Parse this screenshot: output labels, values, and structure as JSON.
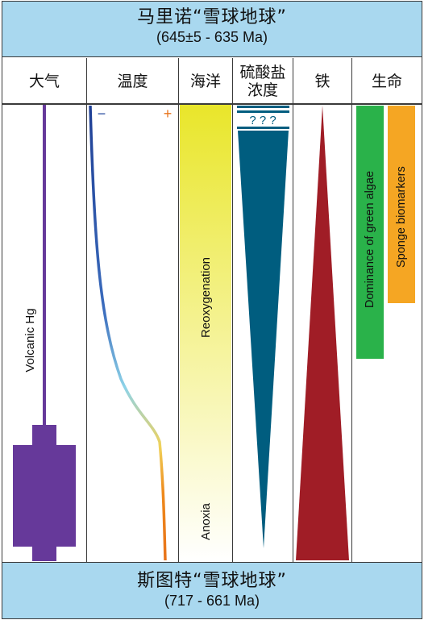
{
  "top_band": {
    "title": "马里诺“雪球地球”",
    "range": "(645±5 - 635 Ma)"
  },
  "bottom_band": {
    "title": "斯图特“雪球地球”",
    "range": "(717 - 661 Ma)"
  },
  "columns": {
    "atmosphere": {
      "header": "大气",
      "label": "Volcanic Hg",
      "color": "#66399a"
    },
    "temperature": {
      "header": "温度",
      "minus": "−",
      "plus": "+"
    },
    "ocean": {
      "header": "海洋",
      "upper_label": "Reoxygenation",
      "lower_label": "Anoxia"
    },
    "sulfate": {
      "header_line1": "硫酸盐",
      "header_line2": "浓度",
      "unknown": "? ? ?",
      "color": "#005d7f"
    },
    "iron": {
      "header": "铁",
      "color": "#a01d26"
    },
    "life": {
      "header": "生命",
      "bars": [
        {
          "label": "Dominance of green algae",
          "color": "#2ab24a"
        },
        {
          "label": "Sponge biomarkers",
          "color": "#f5a623"
        }
      ]
    }
  }
}
